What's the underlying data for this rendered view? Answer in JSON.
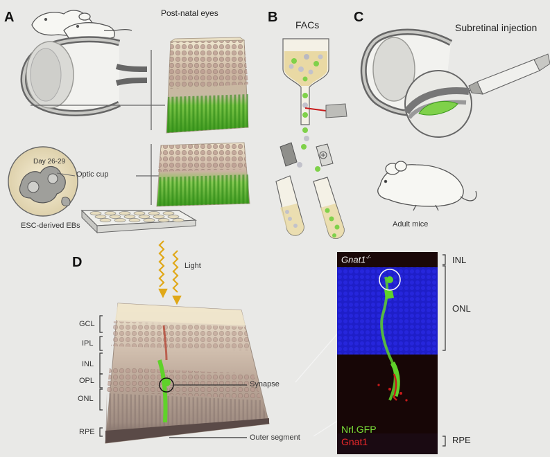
{
  "panels": {
    "a": {
      "label": "A",
      "title": "Post-natal eyes",
      "day": "Day 26-29",
      "optic_cup": "Optic cup",
      "ebs": "ESC-derived EBs"
    },
    "b": {
      "label": "B",
      "title": "FACs"
    },
    "c": {
      "label": "C",
      "title": "Subretinal injection",
      "mice": "Adult mice"
    },
    "d": {
      "label": "D",
      "light": "Light",
      "layers": [
        "GCL",
        "IPL",
        "INL",
        "OPL",
        "ONL",
        "RPE"
      ],
      "synapse": "Synapse",
      "outer_segment": "Outer segment",
      "micro": {
        "genotype": "Gnat1",
        "genotype_sup": "-/-",
        "legend_green": "Nrl.GFP",
        "legend_red": "Gnat1",
        "right_labels": [
          "INL",
          "ONL",
          "RPE"
        ]
      }
    }
  },
  "colors": {
    "gfp_green": "#5fd22a",
    "dapi_blue": "#2424d8",
    "gnat1_red": "#c81a1a",
    "label_green": "#7be03a",
    "label_red": "#e8282a"
  }
}
